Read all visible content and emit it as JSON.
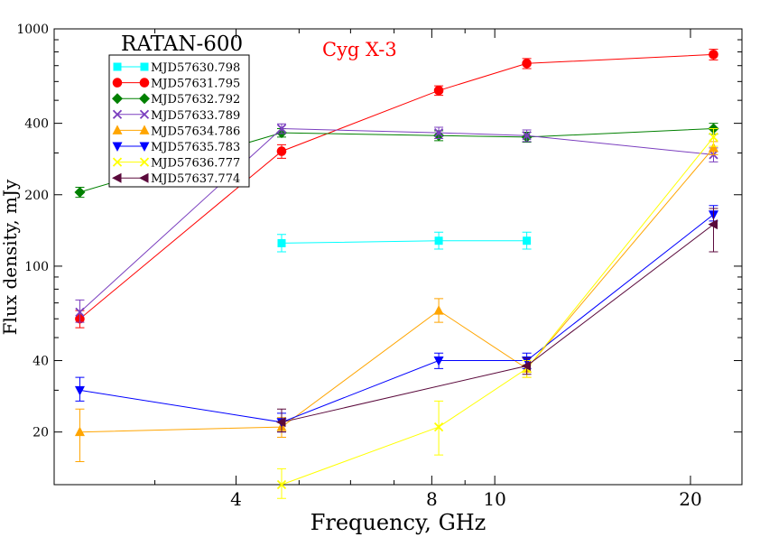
{
  "chart_data": {
    "type": "line",
    "title": "RATAN-600",
    "annotation": "Cyg X-3",
    "annotation_color": "#ff0000",
    "xlabel": "Frequency,  GHz",
    "ylabel": "Flux  density, mJy",
    "x_scale": "log",
    "y_scale": "log",
    "xlim": [
      2.1,
      24
    ],
    "ylim": [
      12,
      1000
    ],
    "x_ticks": [
      4,
      8,
      10,
      20
    ],
    "x_tick_labels": [
      "4",
      "8",
      "10",
      "20"
    ],
    "y_ticks": [
      20,
      40,
      100,
      200,
      400,
      1000
    ],
    "y_tick_labels": [
      "20",
      "40",
      "100",
      "200",
      "400",
      "1000"
    ],
    "legend_position": "top-left",
    "grid": false,
    "series": [
      {
        "name": "MJD57630.798",
        "color": "#00ffff",
        "marker": "square",
        "x": [
          4.7,
          8.2,
          11.2
        ],
        "y": [
          125,
          128,
          128
        ],
        "err": [
          [
            115,
            136
          ],
          [
            118,
            139
          ],
          [
            118,
            139
          ]
        ]
      },
      {
        "name": "MJD57631.795",
        "color": "#ff0000",
        "marker": "circle",
        "x": [
          2.3,
          4.7,
          8.2,
          11.2,
          21.7
        ],
        "y": [
          60,
          305,
          550,
          715,
          780
        ],
        "err": [
          [
            55,
            65
          ],
          [
            285,
            325
          ],
          [
            525,
            575
          ],
          [
            680,
            750
          ],
          [
            740,
            820
          ]
        ]
      },
      {
        "name": "MJD57632.792",
        "color": "#008000",
        "marker": "diamond",
        "x": [
          2.3,
          4.7,
          8.2,
          11.2,
          21.7
        ],
        "y": [
          205,
          365,
          355,
          350,
          380
        ],
        "err": [
          [
            195,
            215
          ],
          [
            350,
            380
          ],
          [
            338,
            372
          ],
          [
            333,
            367
          ],
          [
            360,
            400
          ]
        ]
      },
      {
        "name": "MJD57633.789",
        "color": "#7b3fbf",
        "marker": "x",
        "x": [
          2.3,
          4.7,
          8.2,
          11.2,
          21.7
        ],
        "y": [
          64,
          380,
          365,
          355,
          295
        ],
        "err": [
          [
            58,
            72
          ],
          [
            362,
            398
          ],
          [
            345,
            385
          ],
          [
            335,
            375
          ],
          [
            275,
            315
          ]
        ]
      },
      {
        "name": "MJD57634.786",
        "color": "#ffa500",
        "marker": "triangle-up",
        "x": [
          2.3,
          4.7,
          8.2,
          11.2,
          21.7
        ],
        "y": [
          20,
          21,
          65,
          37,
          315
        ],
        "err": [
          [
            15,
            25
          ],
          [
            19,
            23
          ],
          [
            58,
            73
          ],
          [
            34,
            40
          ],
          [
            295,
            335
          ]
        ]
      },
      {
        "name": "MJD57635.783",
        "color": "#0000ff",
        "marker": "triangle-down",
        "x": [
          2.3,
          4.7,
          8.2,
          11.2,
          21.7
        ],
        "y": [
          30,
          22,
          40,
          40,
          165
        ],
        "err": [
          [
            27,
            34
          ],
          [
            20,
            24
          ],
          [
            37,
            43
          ],
          [
            37,
            43
          ],
          [
            155,
            180
          ]
        ]
      },
      {
        "name": "MJD57636.777",
        "color": "#ffff00",
        "marker": "x",
        "x": [
          4.7,
          8.2,
          11.2,
          21.7
        ],
        "y": [
          12,
          21,
          37,
          350
        ],
        "err": [
          [
            10.5,
            14
          ],
          [
            16,
            27
          ],
          [
            34,
            40
          ],
          [
            320,
            380
          ]
        ]
      },
      {
        "name": "MJD57637.774",
        "color": "#5b0a3c",
        "marker": "triangle-left",
        "x": [
          4.7,
          11.2,
          21.7
        ],
        "y": [
          22,
          38,
          150
        ],
        "err": [
          [
            20,
            25
          ],
          [
            35,
            41
          ],
          [
            115,
            175
          ]
        ]
      }
    ]
  }
}
